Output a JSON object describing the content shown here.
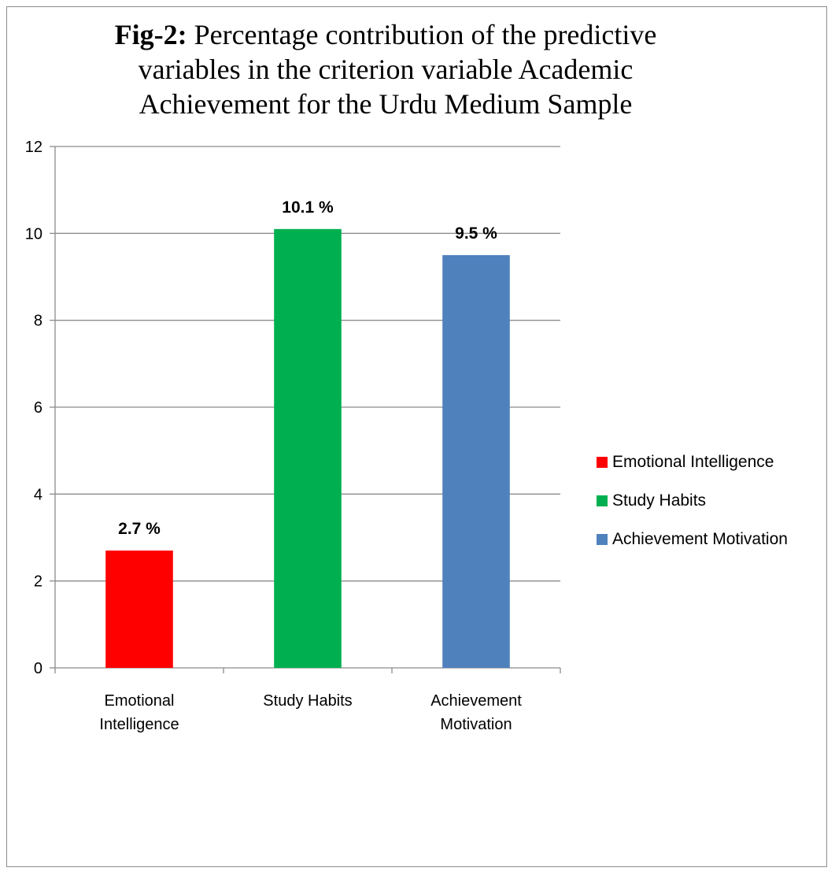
{
  "chart_data": {
    "type": "bar",
    "title_prefix": "Fig-2:",
    "title": "Percentage contribution of the predictive variables in the criterion variable  Academic Achievement for the Urdu Medium Sample",
    "categories": [
      "Emotional Intelligence",
      "Study Habits",
      "Achievement Motivation"
    ],
    "category_label_lines": [
      [
        "Emotional",
        "Intelligence"
      ],
      [
        "Study Habits"
      ],
      [
        "Achievement",
        "Motivation"
      ]
    ],
    "values": [
      2.7,
      10.1,
      9.5
    ],
    "data_labels": [
      "2.7 %",
      "10.1 %",
      "9.5 %"
    ],
    "colors": [
      "#ff0000",
      "#00b050",
      "#4f81bd"
    ],
    "ylim": [
      0,
      12
    ],
    "yticks": [
      0,
      2,
      4,
      6,
      8,
      10,
      12
    ],
    "xlabel": "",
    "ylabel": "",
    "grid": true,
    "legend": {
      "placement": "right",
      "entries": [
        {
          "label": "Emotional Intelligence",
          "color": "#ff0000"
        },
        {
          "label": "Study Habits",
          "color": "#00b050"
        },
        {
          "label": "Achievement Motivation",
          "color": "#4f81bd"
        }
      ]
    }
  }
}
